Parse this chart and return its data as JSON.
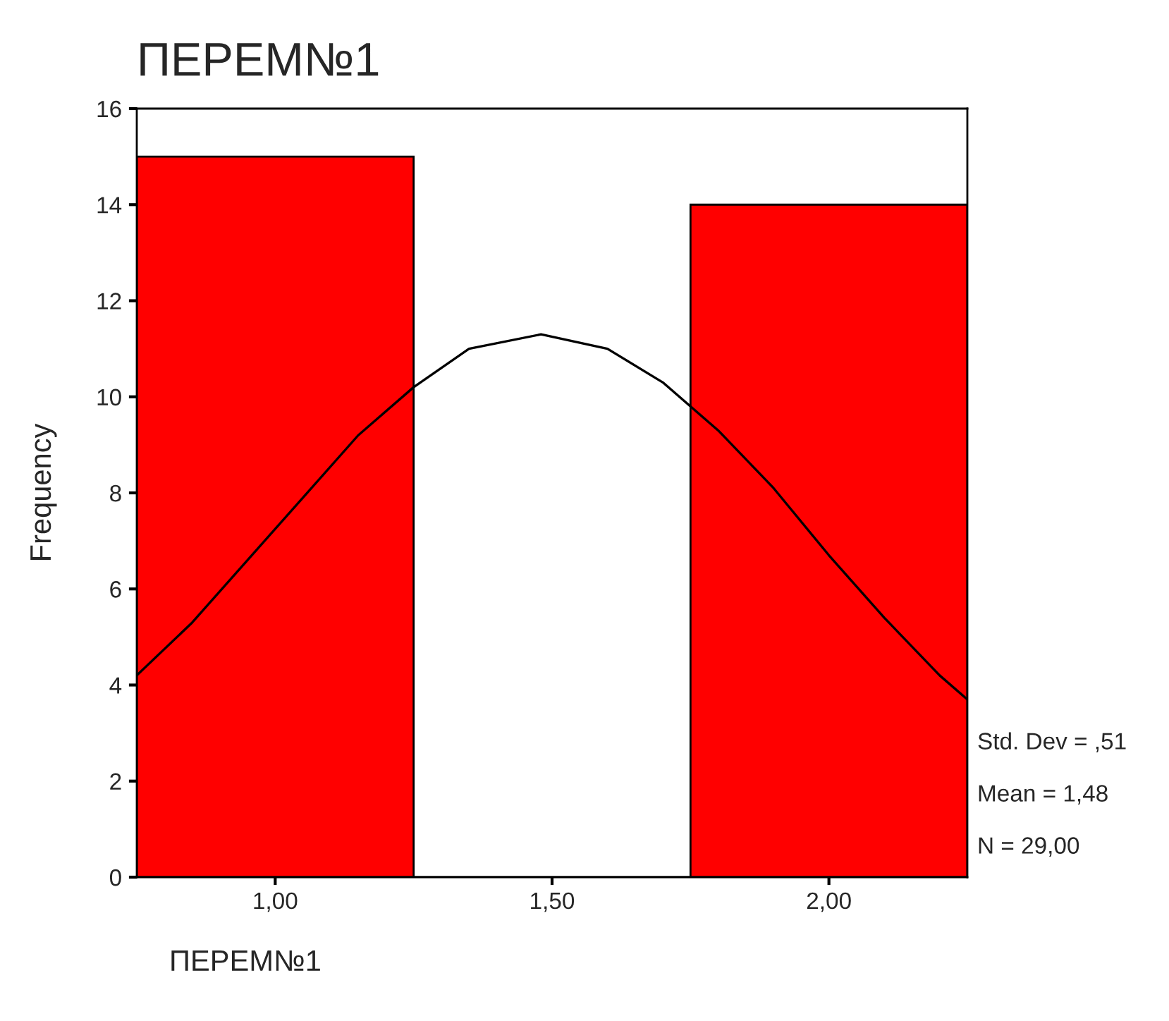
{
  "chart_data": {
    "type": "histogram",
    "title": "ПЕРЕМ№1",
    "xlabel": "ПЕРЕМ№1",
    "ylabel": "Frequency",
    "bins": [
      0.75,
      1.25,
      1.75,
      2.25
    ],
    "series": [
      {
        "color": "#ff0000",
        "values": [
          15,
          0,
          14
        ]
      },
      {
        "type": "line",
        "color": "#000000",
        "x": [
          0.75,
          0.85,
          0.95,
          1.05,
          1.15,
          1.25,
          1.35,
          1.48,
          1.6,
          1.7,
          1.8,
          1.9,
          2.0,
          2.1,
          2.2,
          2.25
        ],
        "values": [
          4.2,
          5.3,
          6.6,
          7.9,
          9.2,
          10.2,
          11.0,
          11.3,
          11.0,
          10.3,
          9.3,
          8.1,
          6.7,
          5.4,
          4.2,
          3.7
        ]
      }
    ],
    "xlim": [
      0.75,
      2.25
    ],
    "ylim": [
      0,
      16
    ],
    "xticks": [
      {
        "value": 1.0,
        "label": "1,00"
      },
      {
        "value": 1.5,
        "label": "1,50"
      },
      {
        "value": 2.0,
        "label": "2,00"
      }
    ],
    "yticks": [
      0,
      2,
      4,
      6,
      8,
      10,
      12,
      14,
      16
    ],
    "grid": false,
    "annotations": [
      "Std. Dev = ,51",
      "Mean = 1,48",
      "N = 29,00"
    ]
  }
}
